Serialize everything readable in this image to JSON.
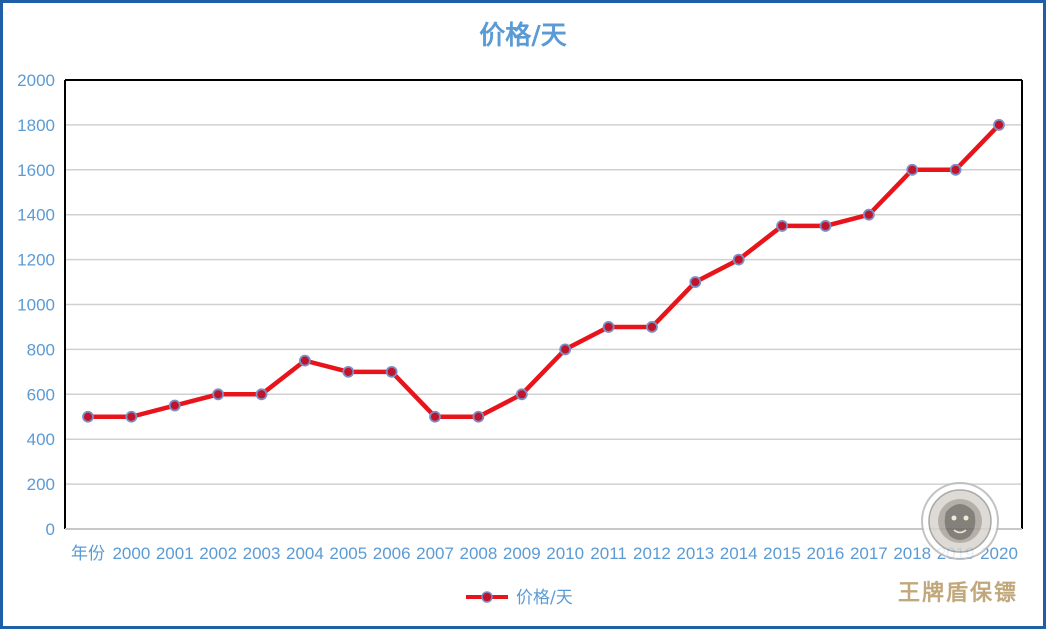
{
  "chart_data": {
    "type": "line",
    "title": "价格/天",
    "xlabel": "",
    "ylabel": "",
    "categories": [
      "年份",
      "2000",
      "2001",
      "2002",
      "2003",
      "2004",
      "2005",
      "2006",
      "2007",
      "2008",
      "2009",
      "2010",
      "2011",
      "2012",
      "2013",
      "2014",
      "2015",
      "2016",
      "2017",
      "2018",
      "2019",
      "2020"
    ],
    "series": [
      {
        "name": "价格/天",
        "values": [
          500,
          500,
          550,
          600,
          600,
          750,
          700,
          700,
          500,
          500,
          600,
          800,
          900,
          900,
          1100,
          1200,
          1350,
          1350,
          1400,
          1600,
          1600,
          1800
        ]
      }
    ],
    "ylim": [
      0,
      2000
    ],
    "yticks": [
      0,
      200,
      400,
      600,
      800,
      1000,
      1200,
      1400,
      1600,
      1800,
      2000
    ],
    "grid": true,
    "legend": "bottom-center"
  },
  "watermark": {
    "text": "王牌盾保镖",
    "logo_icon": "tiger-seal-icon"
  },
  "colors": {
    "line": "#e8141b",
    "marker_fill": "#c0142c",
    "marker_edge": "#7a8fc6",
    "axis_text": "#5b9bd5",
    "title": "#5b9bd5",
    "grid": "#d0d0d0",
    "frame": "#1f5fa8",
    "watermark_text": "#b79a66"
  }
}
